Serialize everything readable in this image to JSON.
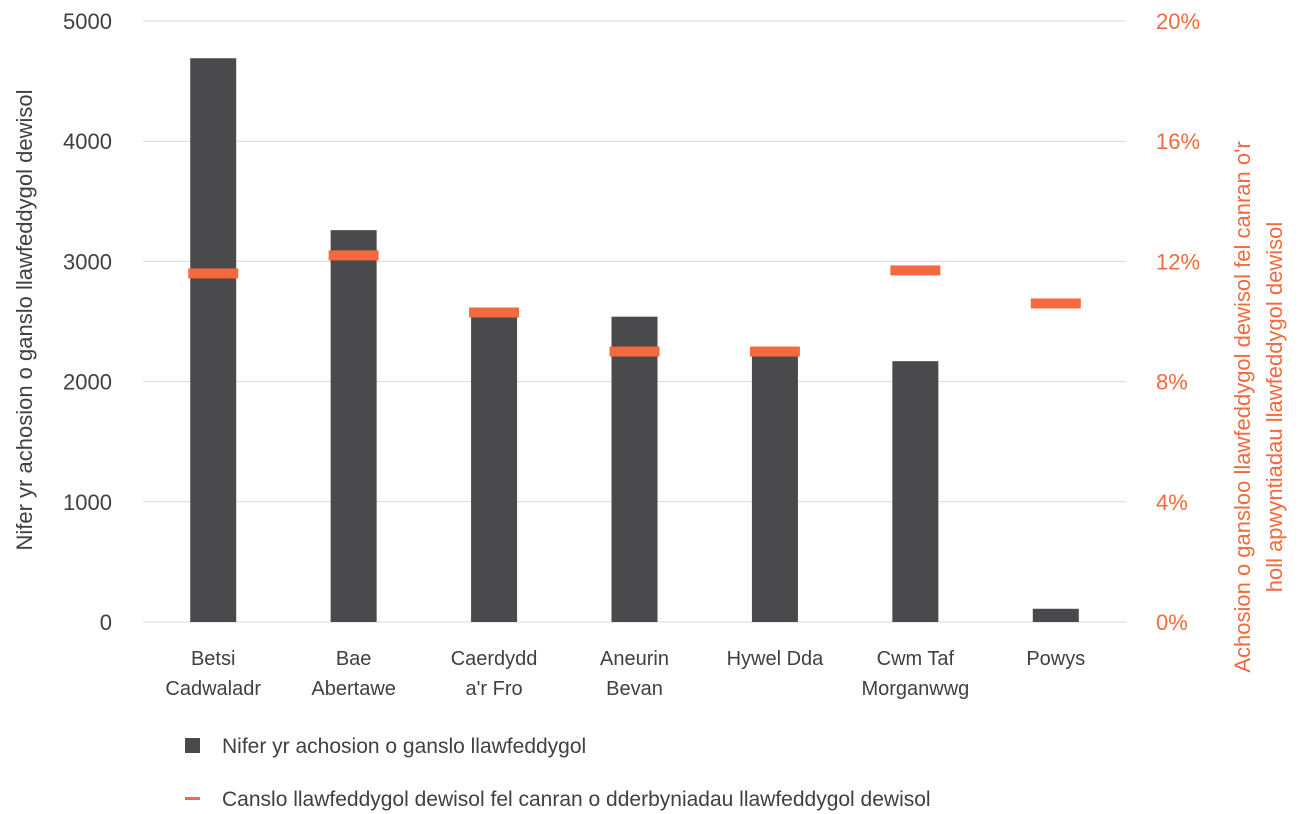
{
  "chart_data": {
    "type": "bar",
    "categories": [
      [
        "Betsi",
        "Cadwaladr"
      ],
      [
        "Bae",
        "Abertawe"
      ],
      [
        "Caerdydd",
        "a'r Fro"
      ],
      [
        "Aneurin",
        "Bevan"
      ],
      [
        "Hywel Dda"
      ],
      [
        "Cwm Taf",
        "Morganwwg"
      ],
      [
        "Powys"
      ]
    ],
    "series": [
      {
        "name": "Nifer yr achosion o ganslo llawfeddygol",
        "type": "bar",
        "axis": "left",
        "color": "#4a4a4c",
        "values": [
          4690,
          3260,
          2560,
          2540,
          2250,
          2170,
          110
        ]
      },
      {
        "name": "Canslo llawfeddygol dewisol fel canran o dderbyniadau llawfeddygol dewisol",
        "type": "marker",
        "axis": "right",
        "color": "#f26a3d",
        "values": [
          11.6,
          12.2,
          10.3,
          9.0,
          9.0,
          11.7,
          10.6
        ]
      }
    ],
    "ylabel": "Nifer yr achosion o ganslo llawfeddygol dewisol",
    "ylabel_right_lines": [
      "Achosion o gansloo llawfeddygol dewisol fel canran o'r",
      "holl apwyntiadau llawfeddygol dewisol"
    ],
    "ylim": [
      0,
      5000
    ],
    "yticks": [
      0,
      1000,
      2000,
      3000,
      4000,
      5000
    ],
    "ylim_right": [
      0,
      20
    ],
    "yticks_right": [
      "0%",
      "4%",
      "8%",
      "12%",
      "16%",
      "20%"
    ],
    "grid": "horizontal",
    "legend_position": "bottom-left"
  }
}
